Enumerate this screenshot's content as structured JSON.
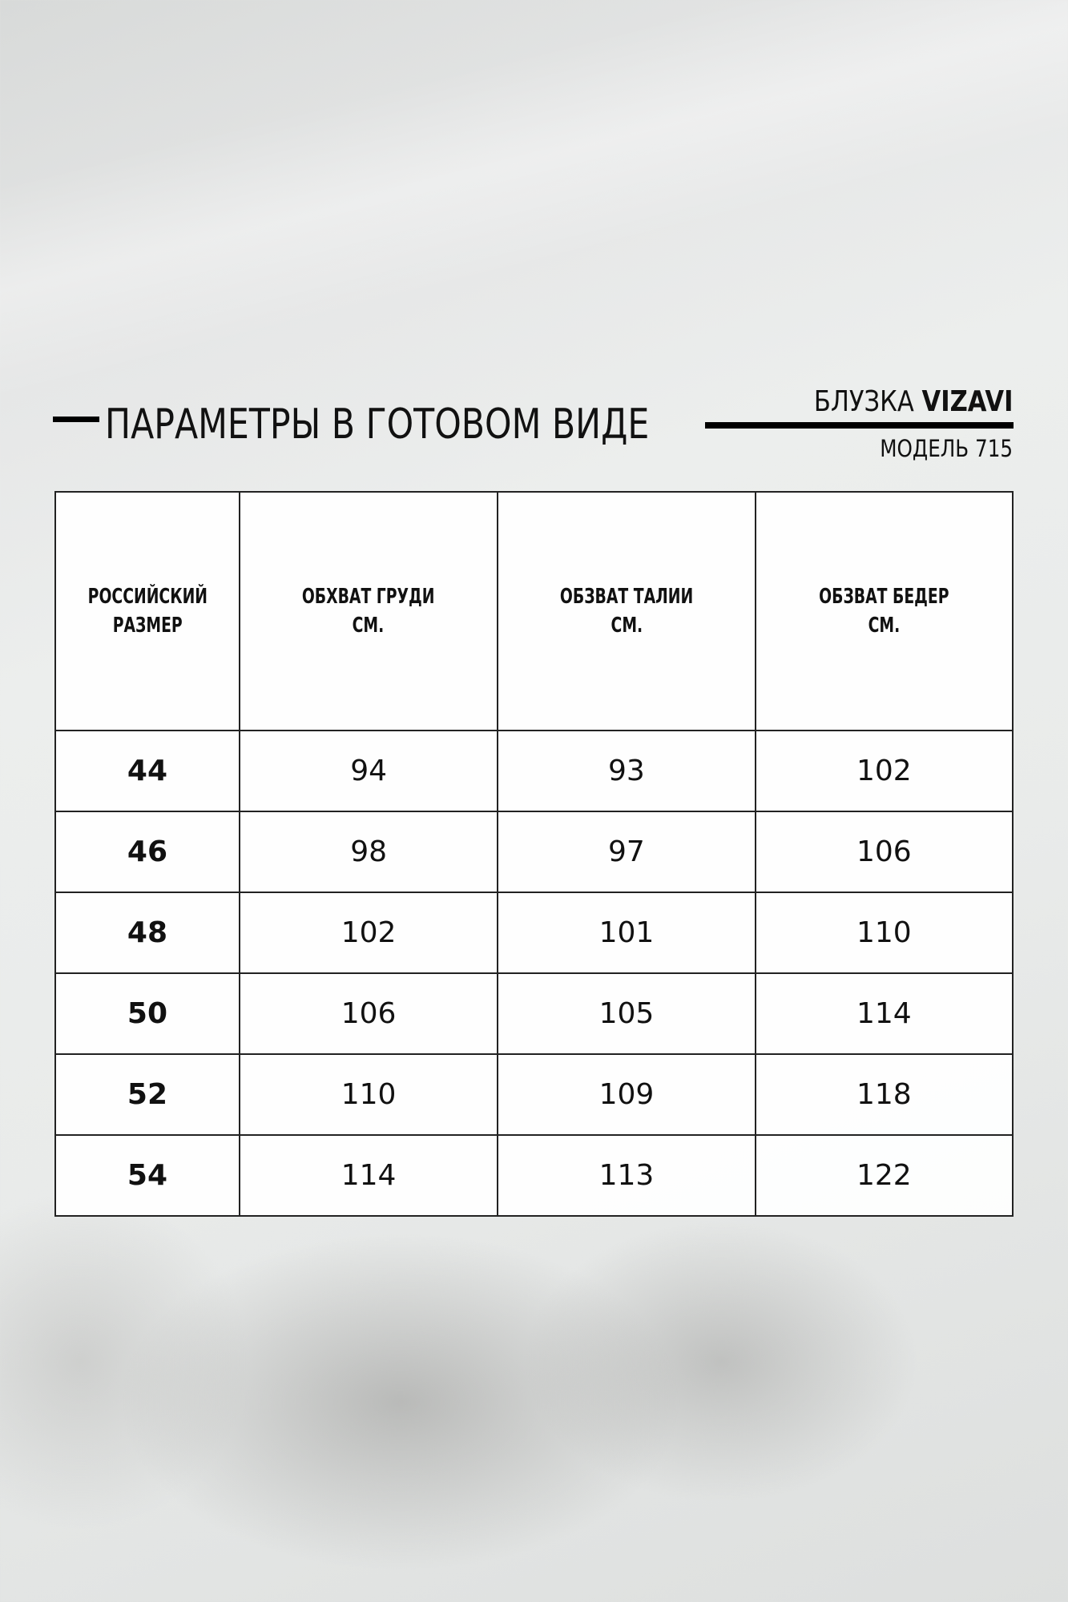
{
  "header": {
    "title": "ПАРАМЕТРЫ В ГОТОВОМ ВИДЕ",
    "product_prefix": "БЛУЗКА",
    "brand": "VIZAVI",
    "model": "МОДЕЛЬ 715"
  },
  "table": {
    "headers": [
      {
        "line1": "РОССИЙСКИЙ",
        "line2": "РАЗМЕР"
      },
      {
        "line1": "ОБХВАТ ГРУДИ",
        "line2": "СМ."
      },
      {
        "line1": "ОБЗВАТ ТАЛИИ",
        "line2": "СМ."
      },
      {
        "line1": "ОБЗВАТ БЕДЕР",
        "line2": "СМ."
      }
    ],
    "rows": [
      [
        "44",
        "94",
        "93",
        "102"
      ],
      [
        "46",
        "98",
        "97",
        "106"
      ],
      [
        "48",
        "102",
        "101",
        "110"
      ],
      [
        "50",
        "106",
        "105",
        "114"
      ],
      [
        "52",
        "110",
        "109",
        "118"
      ],
      [
        "54",
        "114",
        "113",
        "122"
      ]
    ]
  }
}
